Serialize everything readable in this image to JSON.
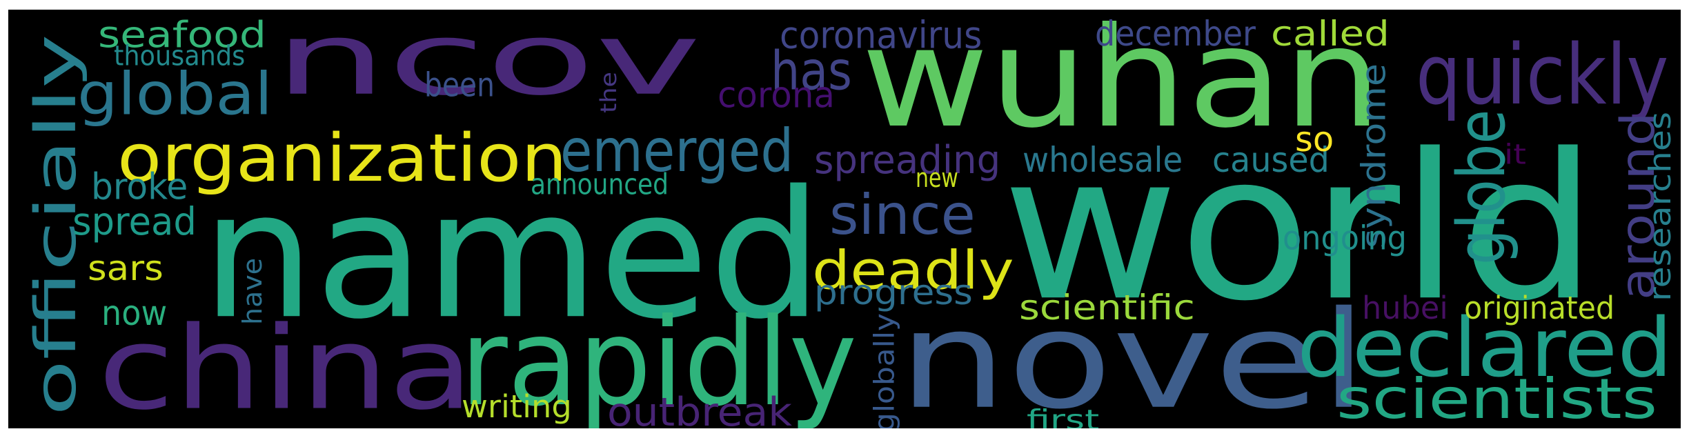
{
  "background": "#000000",
  "colormap": "viridis",
  "words": [
    {
      "id": "named",
      "text": "named",
      "color": "#22a884"
    },
    {
      "id": "world",
      "text": "world",
      "color": "#22a884"
    },
    {
      "id": "ncov",
      "text": "ncov",
      "color": "#482878"
    },
    {
      "id": "wuhan",
      "text": "wuhan",
      "color": "#5ec962"
    },
    {
      "id": "novel",
      "text": "novel",
      "color": "#3e5e8c"
    },
    {
      "id": "china",
      "text": "china",
      "color": "#482878"
    },
    {
      "id": "rapidly",
      "text": "rapidly",
      "color": "#2fb47c"
    },
    {
      "id": "declared",
      "text": "declared",
      "color": "#1f9e89"
    },
    {
      "id": "organization",
      "text": "organization",
      "color": "#e7e419"
    },
    {
      "id": "emerged",
      "text": "emerged",
      "color": "#2d708e"
    },
    {
      "id": "officially",
      "text": "officially",
      "color": "#277f8e"
    },
    {
      "id": "quickly",
      "text": "quickly",
      "color": "#472e7c"
    },
    {
      "id": "global",
      "text": "global",
      "color": "#2a768e"
    },
    {
      "id": "scientists",
      "text": "scientists",
      "color": "#22a884"
    },
    {
      "id": "globe",
      "text": "globe",
      "color": "#21918c"
    },
    {
      "id": "around",
      "text": "around",
      "color": "#433e85"
    },
    {
      "id": "deadly",
      "text": "deadly",
      "color": "#dde318"
    },
    {
      "id": "since",
      "text": "since",
      "color": "#3b528b"
    },
    {
      "id": "has",
      "text": "has",
      "color": "#414487"
    },
    {
      "id": "coronavirus",
      "text": "coronavirus",
      "color": "#404688"
    },
    {
      "id": "outbreak",
      "text": "outbreak",
      "color": "#482475"
    },
    {
      "id": "seafood",
      "text": "seafood",
      "color": "#35b779"
    },
    {
      "id": "december",
      "text": "december",
      "color": "#3e4989"
    },
    {
      "id": "called",
      "text": "called",
      "color": "#a0da39"
    },
    {
      "id": "spreading",
      "text": "spreading",
      "color": "#46337e"
    },
    {
      "id": "wholesale",
      "text": "wholesale",
      "color": "#2a788e"
    },
    {
      "id": "caused",
      "text": "caused",
      "color": "#26828e"
    },
    {
      "id": "syndrome",
      "text": "syndrome",
      "color": "#2c728e"
    },
    {
      "id": "researches",
      "text": "researches",
      "color": "#27808e"
    },
    {
      "id": "progress",
      "text": "progress",
      "color": "#2e6f8e"
    },
    {
      "id": "scientific",
      "text": "scientific",
      "color": "#9bd93c"
    },
    {
      "id": "ongoing",
      "text": "ongoing",
      "color": "#218f8d"
    },
    {
      "id": "corona",
      "text": "corona",
      "color": "#440f6f"
    },
    {
      "id": "spread",
      "text": "spread",
      "color": "#1e9b8a"
    },
    {
      "id": "broke",
      "text": "broke",
      "color": "#23898e"
    },
    {
      "id": "sars",
      "text": "sars",
      "color": "#d0e11c"
    },
    {
      "id": "now",
      "text": "now",
      "color": "#2ab07f"
    },
    {
      "id": "writing",
      "text": "writing",
      "color": "#b5de2b"
    },
    {
      "id": "first",
      "text": "first",
      "color": "#21a685"
    },
    {
      "id": "announced",
      "text": "announced",
      "color": "#22a785"
    },
    {
      "id": "new",
      "text": "new",
      "color": "#c8e020"
    },
    {
      "id": "so",
      "text": "so",
      "color": "#fde725"
    },
    {
      "id": "hubei",
      "text": "hubei",
      "color": "#471063"
    },
    {
      "id": "originated",
      "text": "originated",
      "color": "#b8de29"
    },
    {
      "id": "thousands",
      "text": "thousands",
      "color": "#238a8d"
    },
    {
      "id": "been",
      "text": "been",
      "color": "#3b518b"
    },
    {
      "id": "the",
      "text": "the",
      "color": "#453781"
    },
    {
      "id": "have",
      "text": "have",
      "color": "#2d718e"
    },
    {
      "id": "globally",
      "text": "globally",
      "color": "#38598c"
    },
    {
      "id": "it",
      "text": "it",
      "color": "#440154"
    }
  ]
}
